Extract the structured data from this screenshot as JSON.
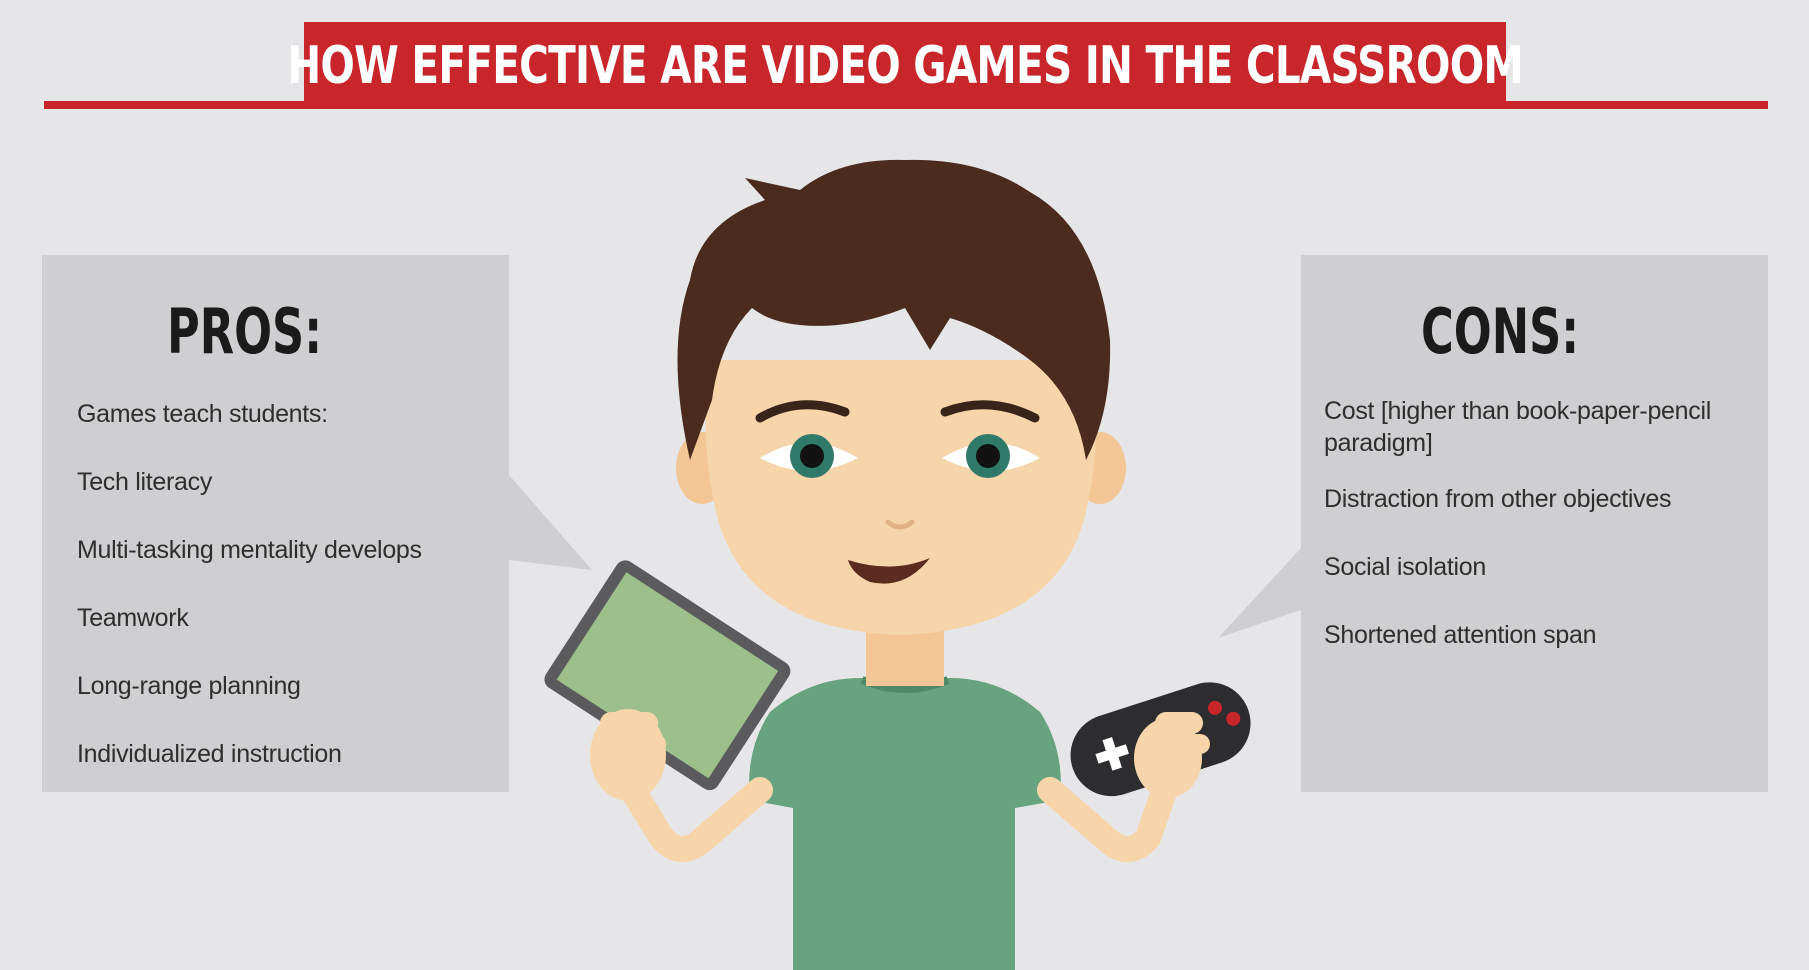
{
  "title": "HOW EFFECTIVE ARE VIDEO GAMES IN THE CLASSROOM",
  "pros": {
    "heading": "PROS:",
    "items": [
      "Games teach students:",
      "Tech literacy",
      "Multi-tasking mentality develops",
      "Teamwork",
      "Long-range planning",
      "Individualized instruction"
    ]
  },
  "cons": {
    "heading": "CONS:",
    "items": [
      "Cost [higher than book-paper-pencil paradigm]",
      "Distraction from other objectives",
      "Social isolation",
      "Shortened attention span"
    ]
  },
  "colors": {
    "accent": "#c9262c",
    "background": "#e6e6e8",
    "panel": "#cfcfd1",
    "shirt": "#66a37e",
    "hair": "#4a2b1e",
    "skin": "#f7d5aa",
    "tablet_screen": "#9dbf8c"
  }
}
